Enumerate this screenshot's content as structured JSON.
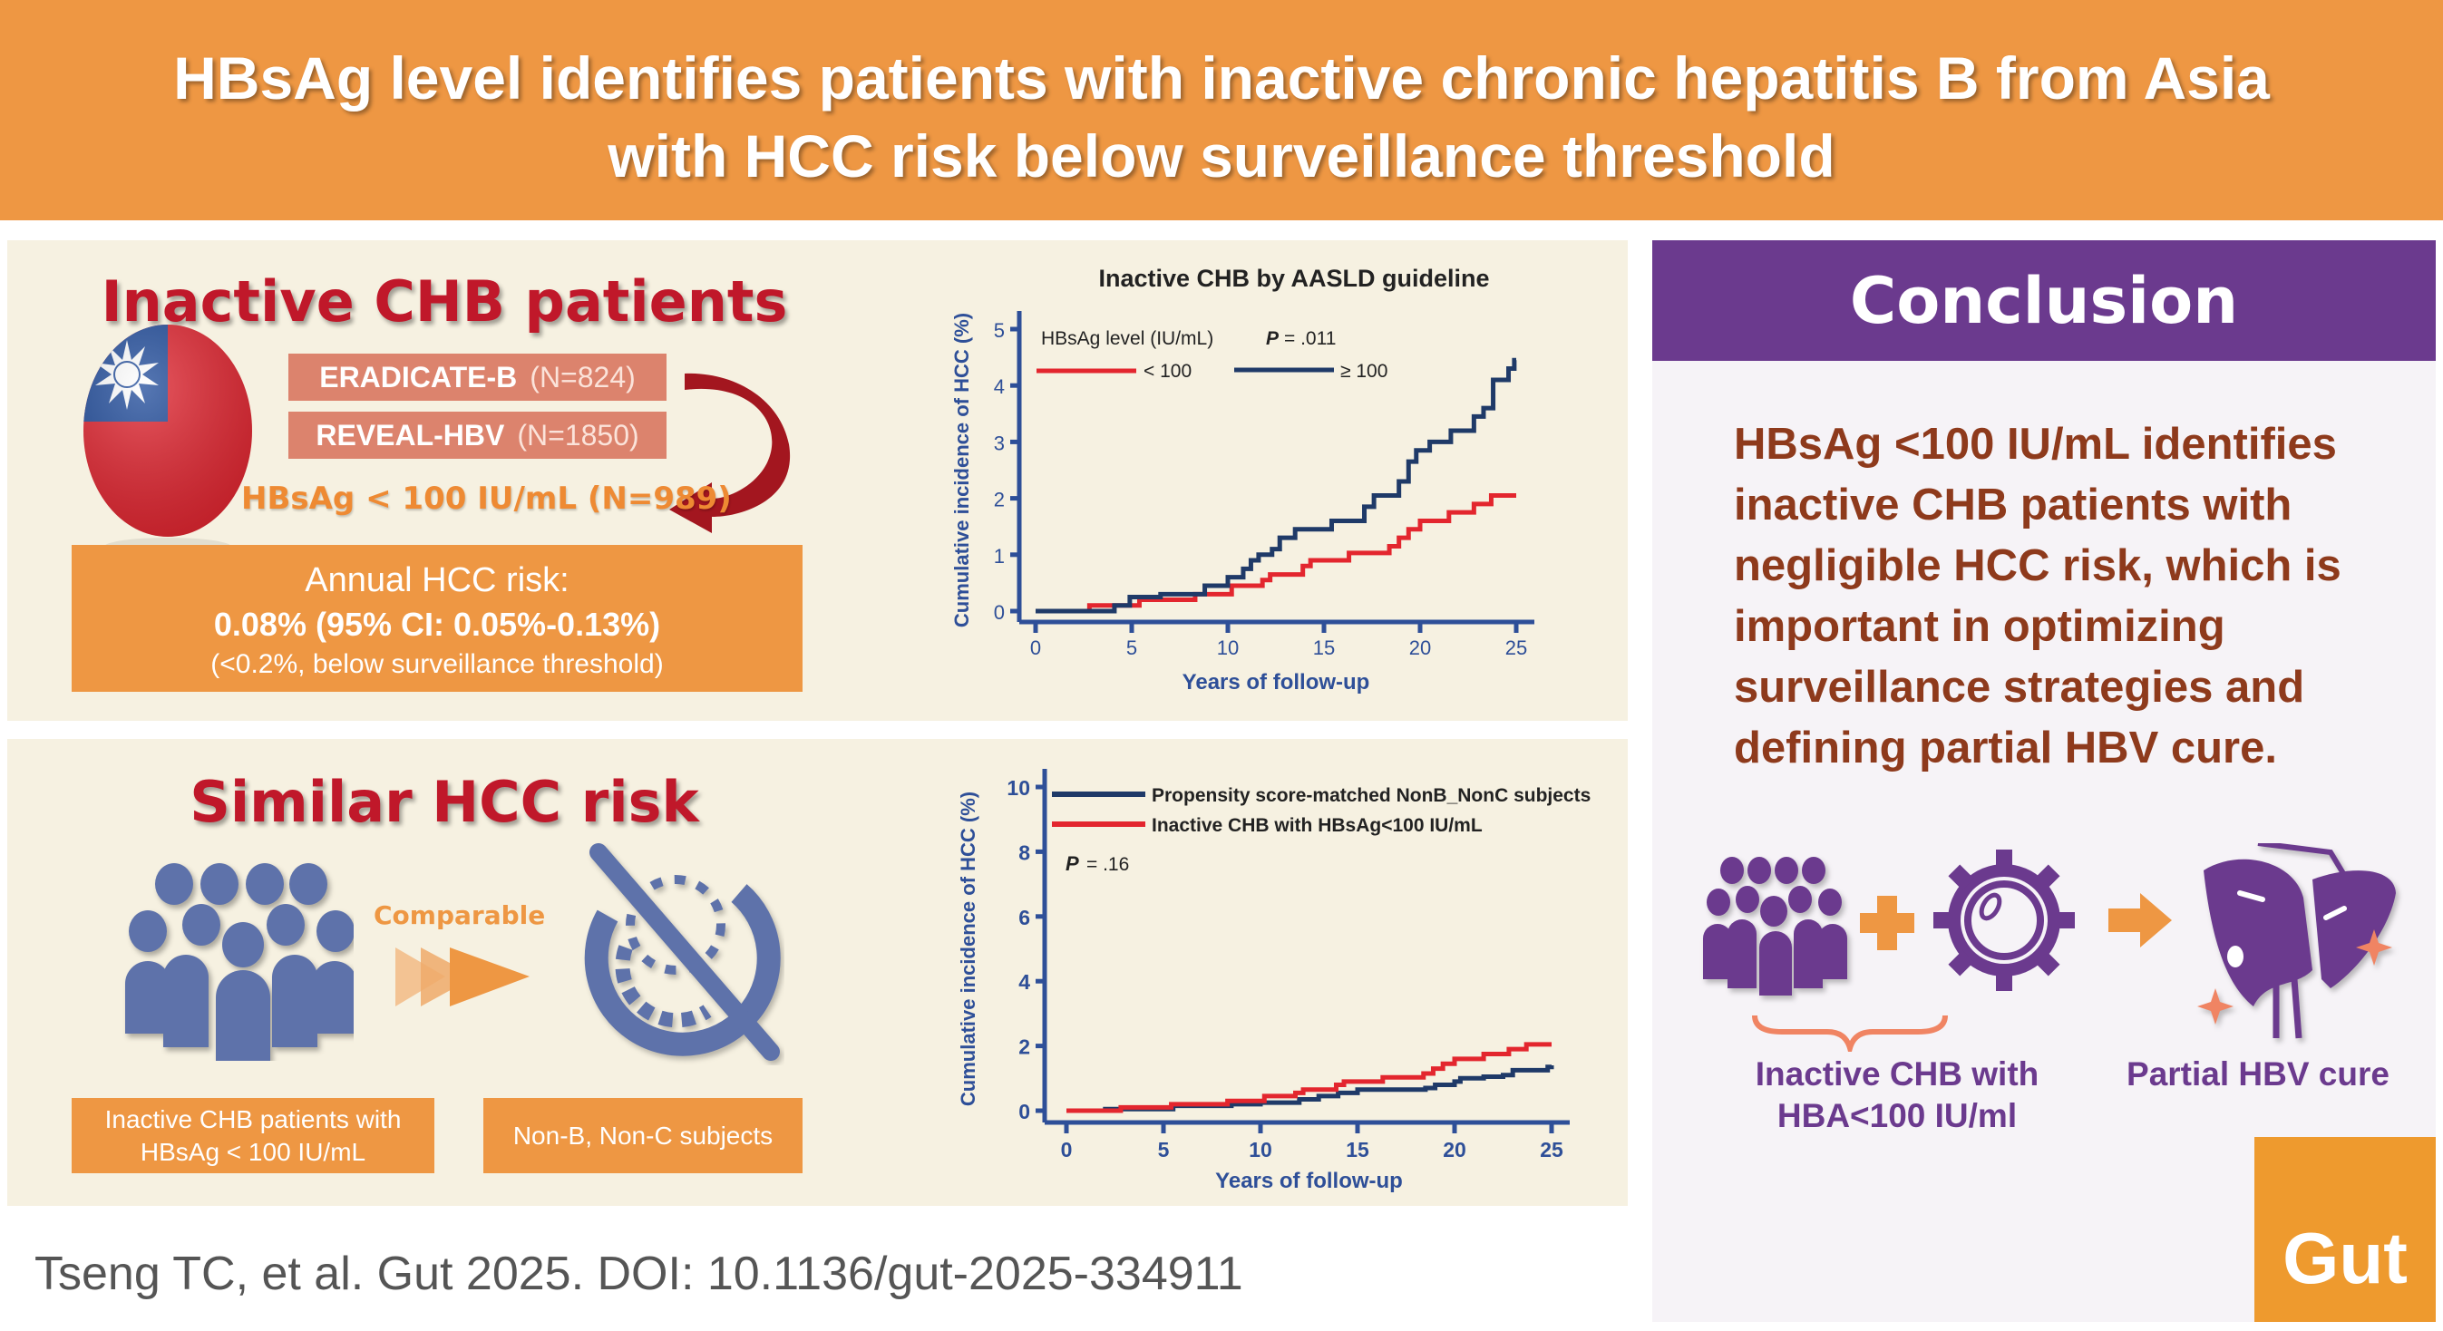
{
  "banner": {
    "title_line1": "HBsAg level identifies patients with inactive chronic hepatitis B from Asia",
    "title_line2": "with HCC risk below surveillance threshold"
  },
  "panel1": {
    "title": "Inactive CHB patients",
    "flag_icon": "taiwan-flag-icon",
    "cohorts": [
      {
        "name": "ERADICATE-B",
        "n": "(N=824)"
      },
      {
        "name": "REVEAL-HBV",
        "n": "(N=1850)"
      }
    ],
    "subset": "HBsAg < 100 IU/mL (N=989)",
    "risk_line1": "Annual HCC risk:",
    "risk_line2": "0.08% (95% CI: 0.05%-0.13%)",
    "risk_line3": "(<0.2%, below surveillance threshold)"
  },
  "panel2": {
    "title": "Similar HCC risk",
    "comparable": "Comparable",
    "box_left": "Inactive CHB patients with HBsAg < 100 IU/mL",
    "box_right": "Non-B, Non-C subjects"
  },
  "conclusion": {
    "header": "Conclusion",
    "lines": [
      "HBsAg <100 IU/mL identifies",
      "inactive CHB patients with",
      "negligible HCC risk, which is",
      "important in optimizing",
      "surveillance strategies and",
      "defining partial HBV cure."
    ],
    "label_left_1": "Inactive CHB with",
    "label_left_2": "HBA<100 IU/ml",
    "label_right": "Partial HBV cure",
    "journal": "Gut"
  },
  "citation": "Tseng TC, et al. Gut 2025. DOI: 10.1136/gut-2025-334911",
  "colors": {
    "banner": "#EE9743",
    "panel": "#F6F1E1",
    "purple": "#6B3A8E",
    "red_series": "#E3262E",
    "navy_series": "#1F3A68",
    "axis": "#2E4F98"
  },
  "chart_data": [
    {
      "type": "line",
      "step": true,
      "title": "Inactive CHB by AASLD guideline",
      "xlabel": "Years of follow-up",
      "ylabel": "Cumulative incidence of HCC (%)",
      "xlim": [
        0,
        25
      ],
      "ylim": [
        0,
        5
      ],
      "xticks": [
        "0",
        "5",
        "10",
        "15",
        "20",
        "25"
      ],
      "yticks": [
        "0",
        "1",
        "2",
        "3",
        "4",
        "5"
      ],
      "legend_title": "HBsAg level (IU/mL)",
      "p_label": "P",
      "p_value": "= .011",
      "grid": false,
      "legend": "top-left",
      "series": [
        {
          "name": "< 100",
          "color": "#E3262E",
          "x": [
            0,
            2.8,
            5.4,
            8.3,
            10.2,
            11.8,
            12.2,
            13.9,
            14.3,
            16.3,
            18.4,
            18.9,
            19.4,
            20.0,
            21.5,
            22.8,
            23.7,
            25
          ],
          "y": [
            0,
            0.1,
            0.2,
            0.3,
            0.45,
            0.55,
            0.65,
            0.8,
            0.9,
            1.03,
            1.15,
            1.3,
            1.45,
            1.6,
            1.75,
            1.9,
            2.05,
            2.05
          ]
        },
        {
          "name": "≥ 100",
          "color": "#1F3A68",
          "x": [
            0,
            4.1,
            4.9,
            6.5,
            8.8,
            10,
            10.8,
            11.2,
            11.6,
            12.3,
            12.7,
            13.5,
            15.4,
            17.1,
            17.6,
            18.9,
            19.4,
            19.8,
            20.5,
            21.6,
            22.8,
            23.3,
            23.8,
            24.6,
            24.9,
            25
          ],
          "y": [
            0,
            0.1,
            0.25,
            0.3,
            0.45,
            0.6,
            0.75,
            0.9,
            1.0,
            1.1,
            1.3,
            1.45,
            1.6,
            1.85,
            2.05,
            2.3,
            2.65,
            2.85,
            3.0,
            3.2,
            3.45,
            3.6,
            4.1,
            4.3,
            4.45,
            4.45
          ]
        }
      ]
    },
    {
      "type": "line",
      "step": true,
      "title": "",
      "xlabel": "Years of follow-up",
      "ylabel": "Cumulative incidence of HCC (%)",
      "xlim": [
        0,
        25
      ],
      "ylim": [
        0,
        10
      ],
      "xticks": [
        "0",
        "5",
        "10",
        "15",
        "20",
        "25"
      ],
      "yticks": [
        "0",
        "2",
        "4",
        "6",
        "8",
        "10"
      ],
      "p_label": "P",
      "p_value": "= .16",
      "grid": false,
      "legend": "top-left",
      "series": [
        {
          "name": "Propensity score-matched NonB_NonC subjects",
          "color": "#1F3A68",
          "x": [
            0,
            2,
            5.5,
            8.5,
            10,
            12,
            13,
            14,
            15,
            18.5,
            19,
            20,
            20.3,
            21.5,
            22.5,
            23,
            24.8,
            25
          ],
          "y": [
            0,
            0.05,
            0.15,
            0.2,
            0.25,
            0.35,
            0.45,
            0.55,
            0.65,
            0.7,
            0.8,
            0.9,
            1.0,
            1.05,
            1.1,
            1.25,
            1.35,
            1.4
          ]
        },
        {
          "name": "Inactive CHB with HBsAg<100 IU/mL",
          "color": "#E3262E",
          "x": [
            0,
            2.8,
            5.4,
            8.3,
            10.2,
            11.8,
            12.2,
            13.9,
            14.3,
            16.3,
            18.4,
            18.9,
            19.4,
            20.0,
            21.5,
            22.8,
            23.7,
            25
          ],
          "y": [
            0,
            0.1,
            0.2,
            0.3,
            0.45,
            0.55,
            0.65,
            0.8,
            0.9,
            1.03,
            1.15,
            1.3,
            1.45,
            1.6,
            1.75,
            1.9,
            2.05,
            2.05
          ]
        }
      ]
    }
  ]
}
